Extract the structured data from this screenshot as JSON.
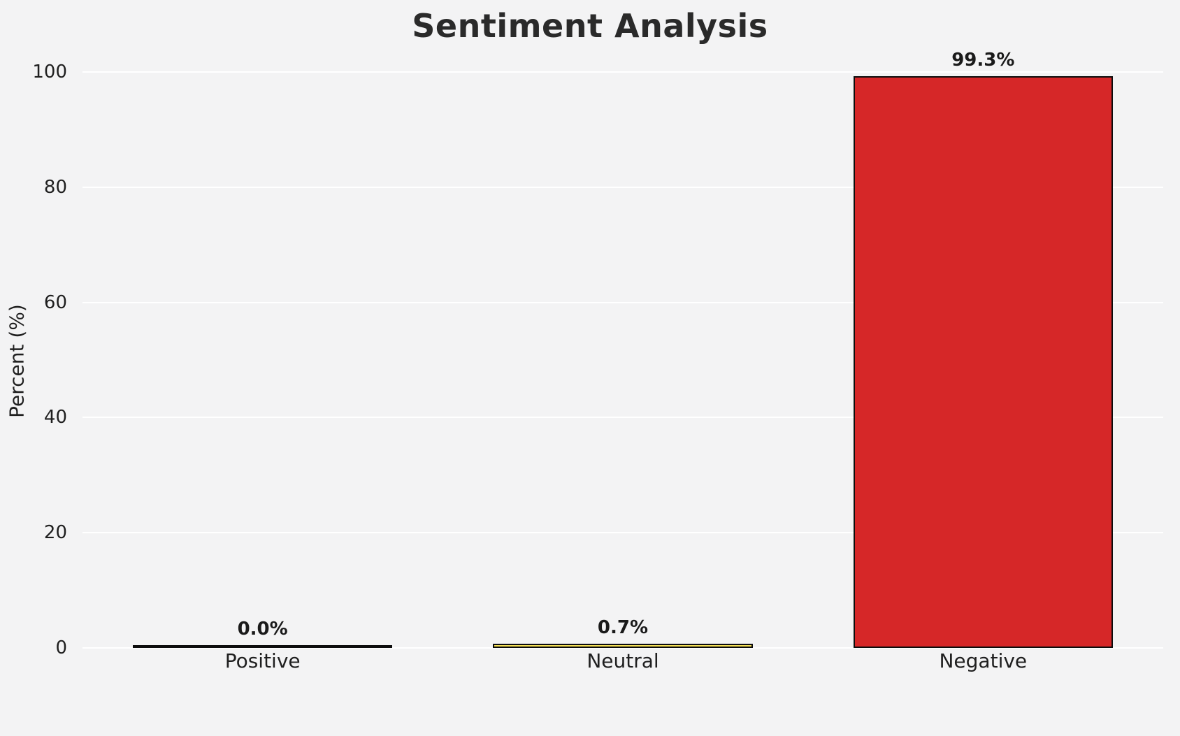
{
  "chart_data": {
    "type": "bar",
    "title": "Sentiment Analysis",
    "ylabel": "Percent (%)",
    "xlabel": "",
    "categories": [
      "Positive",
      "Neutral",
      "Negative"
    ],
    "values": [
      0.0,
      0.7,
      99.3
    ],
    "value_labels": [
      "0.0%",
      "0.7%",
      "99.3%"
    ],
    "colors": [
      "#f3f3f4",
      "#f5e056",
      "#d62728"
    ],
    "bar_edge_color": "#0d0d0d",
    "ylim": [
      0,
      100
    ],
    "yticks": [
      0,
      20,
      40,
      60,
      80,
      100
    ],
    "grid": "horizontal-white-lines",
    "legend": "none"
  }
}
